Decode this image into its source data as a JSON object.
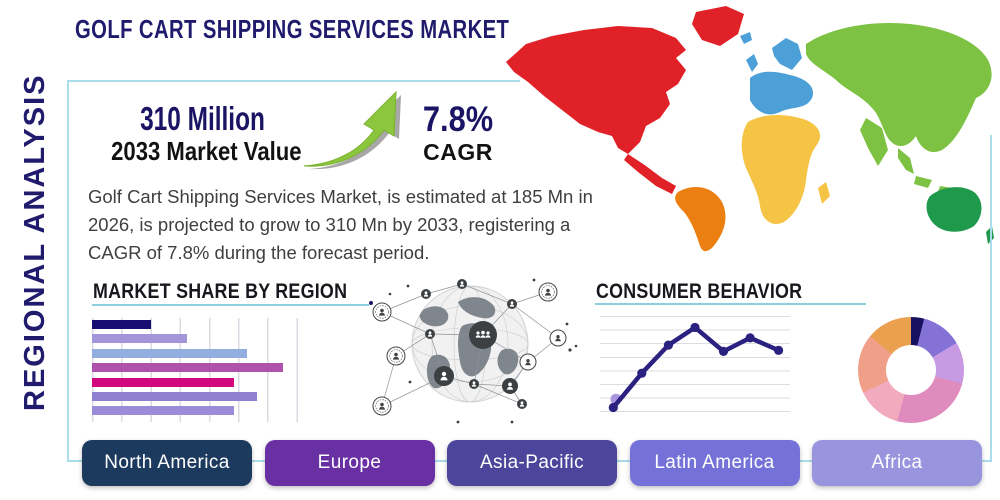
{
  "title": "GOLF CART SHIPPING SERVICES MARKET",
  "side_label": "REGIONAL ANALYSIS",
  "stats": {
    "market_value": "310 Million",
    "market_value_label": "2033 Market Value",
    "cagr_value": "7.8%",
    "cagr_label": "CAGR"
  },
  "description": "Golf Cart Shipping Services Market, is estimated at 185 Mn in 2026, is projected to grow to 310 Mn by 2033, registering a CAGR of 7.8% during the forecast period.",
  "region_buttons": [
    {
      "label": "North America",
      "color": "#1c3a5e"
    },
    {
      "label": "Europe",
      "color": "#6930a3"
    },
    {
      "label": "Asia-Pacific",
      "color": "#4b459c"
    },
    {
      "label": "Latin America",
      "color": "#7472d8"
    },
    {
      "label": "Africa",
      "color": "#9894dd"
    }
  ],
  "chart_data": [
    {
      "type": "bar",
      "title": "MARKET SHARE BY REGION",
      "orientation": "horizontal",
      "axis_labels_shown": false,
      "xlim": [
        0,
        100
      ],
      "grid": "vertical",
      "values": [
        28,
        45,
        73,
        90,
        67,
        78,
        67
      ],
      "bar_colors": [
        "#150e70",
        "#a295da",
        "#92aede",
        "#af52ab",
        "#d2077e",
        "#8f7fd0",
        "#9a8cd8"
      ]
    },
    {
      "type": "line",
      "title": "CONSUMER BEHAVIOR",
      "axis_labels_shown": false,
      "grid": "horizontal",
      "x_pct": [
        7,
        22,
        36,
        50,
        65,
        79,
        94
      ],
      "y_pct": [
        12,
        45,
        72,
        89,
        66,
        79,
        67
      ],
      "line_color": "#2a2180",
      "marker_color": "#2a2180",
      "first_point_highlight": {
        "x_pct": 8.4,
        "y_pct": 20,
        "color": "#ab97dd"
      }
    },
    {
      "type": "pie",
      "style": "donut",
      "start_angle_deg": 0,
      "segments": [
        {
          "share_pct": 4,
          "color": "#151060"
        },
        {
          "share_pct": 12.5,
          "color": "#8472d6"
        },
        {
          "share_pct": 12.7,
          "color": "#c89ae4"
        },
        {
          "share_pct": 25,
          "color": "#e08bbd"
        },
        {
          "share_pct": 13.8,
          "color": "#f2aabe"
        },
        {
          "share_pct": 18,
          "color": "#f0a089"
        },
        {
          "share_pct": 14,
          "color": "#eba050"
        }
      ]
    }
  ],
  "map": {
    "type": "world-choropleth",
    "region_colors": {
      "greenland": "#e02127",
      "north_america": "#e02127",
      "central_america": "#e02127",
      "south_america": "#ec7f12",
      "europe": "#4d9fd8",
      "africa": "#f6c445",
      "asia": "#7dc242",
      "australia": "#1f9a4d"
    }
  },
  "theme": {
    "title_color": "#201b6d",
    "heading_color": "#17171d",
    "text_color": "#3f3f3f",
    "panel_border": "#abdcec",
    "underline": "#8ecfdd",
    "growth_arrow_green": "#8cc63e"
  }
}
